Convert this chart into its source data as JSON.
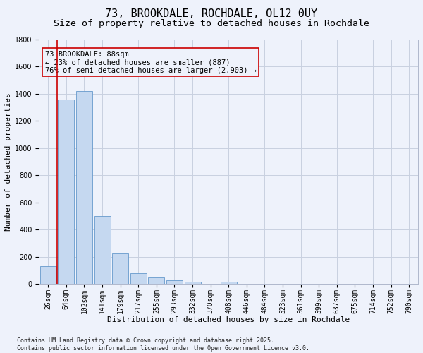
{
  "title": "73, BROOKDALE, ROCHDALE, OL12 0UY",
  "subtitle": "Size of property relative to detached houses in Rochdale",
  "xlabel": "Distribution of detached houses by size in Rochdale",
  "ylabel": "Number of detached properties",
  "categories": [
    "26sqm",
    "64sqm",
    "102sqm",
    "141sqm",
    "179sqm",
    "217sqm",
    "255sqm",
    "293sqm",
    "332sqm",
    "370sqm",
    "408sqm",
    "446sqm",
    "484sqm",
    "523sqm",
    "561sqm",
    "599sqm",
    "637sqm",
    "675sqm",
    "714sqm",
    "752sqm",
    "790sqm"
  ],
  "values": [
    130,
    1360,
    1420,
    500,
    225,
    80,
    48,
    28,
    20,
    0,
    20,
    0,
    0,
    0,
    0,
    0,
    0,
    0,
    0,
    0,
    0
  ],
  "bar_color": "#c5d8f0",
  "bar_edge_color": "#6699cc",
  "vline_color": "#cc0000",
  "vline_pos": 0.5,
  "annotation_text": "73 BROOKDALE: 88sqm\n← 23% of detached houses are smaller (887)\n76% of semi-detached houses are larger (2,903) →",
  "annotation_box_color": "#cc0000",
  "ylim": [
    0,
    1800
  ],
  "yticks": [
    0,
    200,
    400,
    600,
    800,
    1000,
    1200,
    1400,
    1600,
    1800
  ],
  "footnote": "Contains HM Land Registry data © Crown copyright and database right 2025.\nContains public sector information licensed under the Open Government Licence v3.0.",
  "title_fontsize": 11,
  "subtitle_fontsize": 9.5,
  "axis_label_fontsize": 8,
  "tick_fontsize": 7,
  "annotation_fontsize": 7.5,
  "background_color": "#eef2fb",
  "grid_color": "#c8d0e0"
}
